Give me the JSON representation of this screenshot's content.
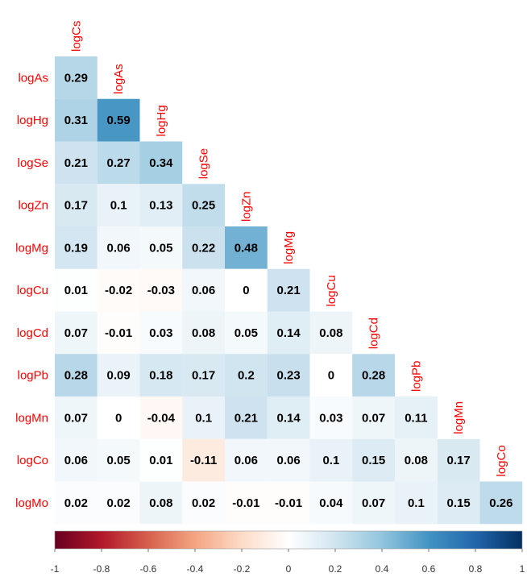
{
  "chart_data": {
    "type": "heatmap",
    "title": "",
    "variables": [
      "logCs",
      "logAs",
      "logHg",
      "logSe",
      "logZn",
      "logMg",
      "logCu",
      "logCd",
      "logPb",
      "logMn",
      "logCo",
      "logMo"
    ],
    "rows": [
      "logAs",
      "logHg",
      "logSe",
      "logZn",
      "logMg",
      "logCu",
      "logCd",
      "logPb",
      "logMn",
      "logCo",
      "logMo"
    ],
    "columns": [
      "logCs",
      "logAs",
      "logHg",
      "logSe",
      "logZn",
      "logMg",
      "logCu",
      "logCd",
      "logPb",
      "logMn",
      "logCo"
    ],
    "values": [
      [
        0.29
      ],
      [
        0.31,
        0.59
      ],
      [
        0.21,
        0.27,
        0.34
      ],
      [
        0.17,
        0.1,
        0.13,
        0.25
      ],
      [
        0.19,
        0.06,
        0.05,
        0.22,
        0.48
      ],
      [
        0.01,
        -0.02,
        -0.03,
        0.06,
        0,
        0.21
      ],
      [
        0.07,
        -0.01,
        0.03,
        0.08,
        0.05,
        0.14,
        0.08
      ],
      [
        0.28,
        0.09,
        0.18,
        0.17,
        0.2,
        0.23,
        0,
        0.28
      ],
      [
        0.07,
        0,
        -0.04,
        0.1,
        0.21,
        0.14,
        0.03,
        0.07,
        0.11
      ],
      [
        0.06,
        0.05,
        0.01,
        -0.11,
        0.06,
        0.06,
        0.1,
        0.15,
        0.08,
        0.17
      ],
      [
        0.02,
        0.02,
        0.08,
        0.02,
        -0.01,
        -0.01,
        0.04,
        0.07,
        0.1,
        0.15,
        0.26
      ]
    ],
    "colorbar": {
      "range": [
        -1,
        1
      ],
      "ticks": [
        "-1",
        "-0.8",
        "-0.6",
        "-0.4",
        "-0.2",
        "0",
        "0.2",
        "0.4",
        "0.6",
        "0.8",
        "1"
      ],
      "colors": [
        "#67001f",
        "#b2182b",
        "#d6604d",
        "#f4a582",
        "#fddbc7",
        "#ffffff",
        "#d1e5f0",
        "#92c5de",
        "#4393c3",
        "#2166ac",
        "#053061"
      ]
    },
    "label_color": "#ff0000",
    "legend_position": "bottom"
  }
}
